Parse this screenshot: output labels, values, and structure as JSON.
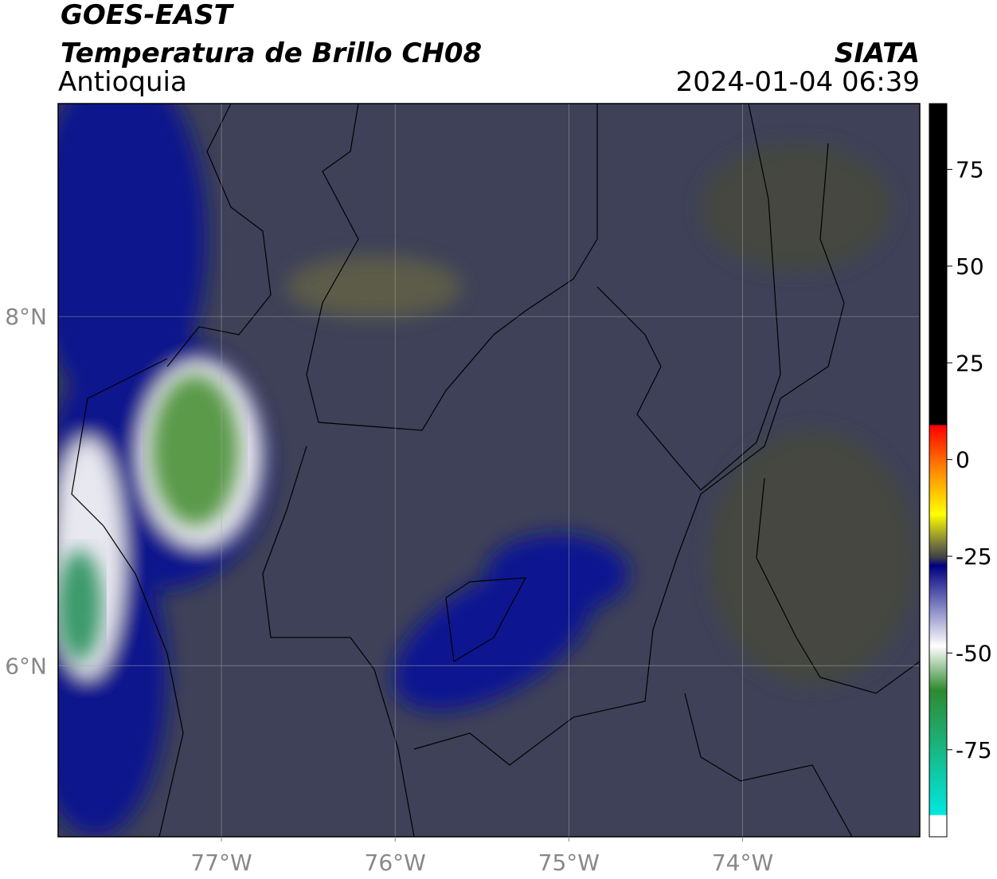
{
  "header": {
    "source": "GOES-EAST",
    "product": "Temperatura de Brillo CH08",
    "region": "Antioquia",
    "agency": "SIATA",
    "datetime": "2024-01-04 06:39"
  },
  "map": {
    "lon_range": [
      -77.94,
      -72.98
    ],
    "lat_range": [
      5.02,
      9.22
    ],
    "lon_ticks": [
      {
        "value": -77,
        "label": "77°W"
      },
      {
        "value": -76,
        "label": "76°W"
      },
      {
        "value": -75,
        "label": "75°W"
      },
      {
        "value": -74,
        "label": "74°W"
      }
    ],
    "lat_ticks": [
      {
        "value": 8,
        "label": "8°N"
      },
      {
        "value": 6,
        "label": "6°N"
      }
    ]
  },
  "colorbar": {
    "range": [
      -97.5,
      92
    ],
    "ticks": [
      75,
      50,
      25,
      0,
      -25,
      -50,
      -75
    ]
  }
}
